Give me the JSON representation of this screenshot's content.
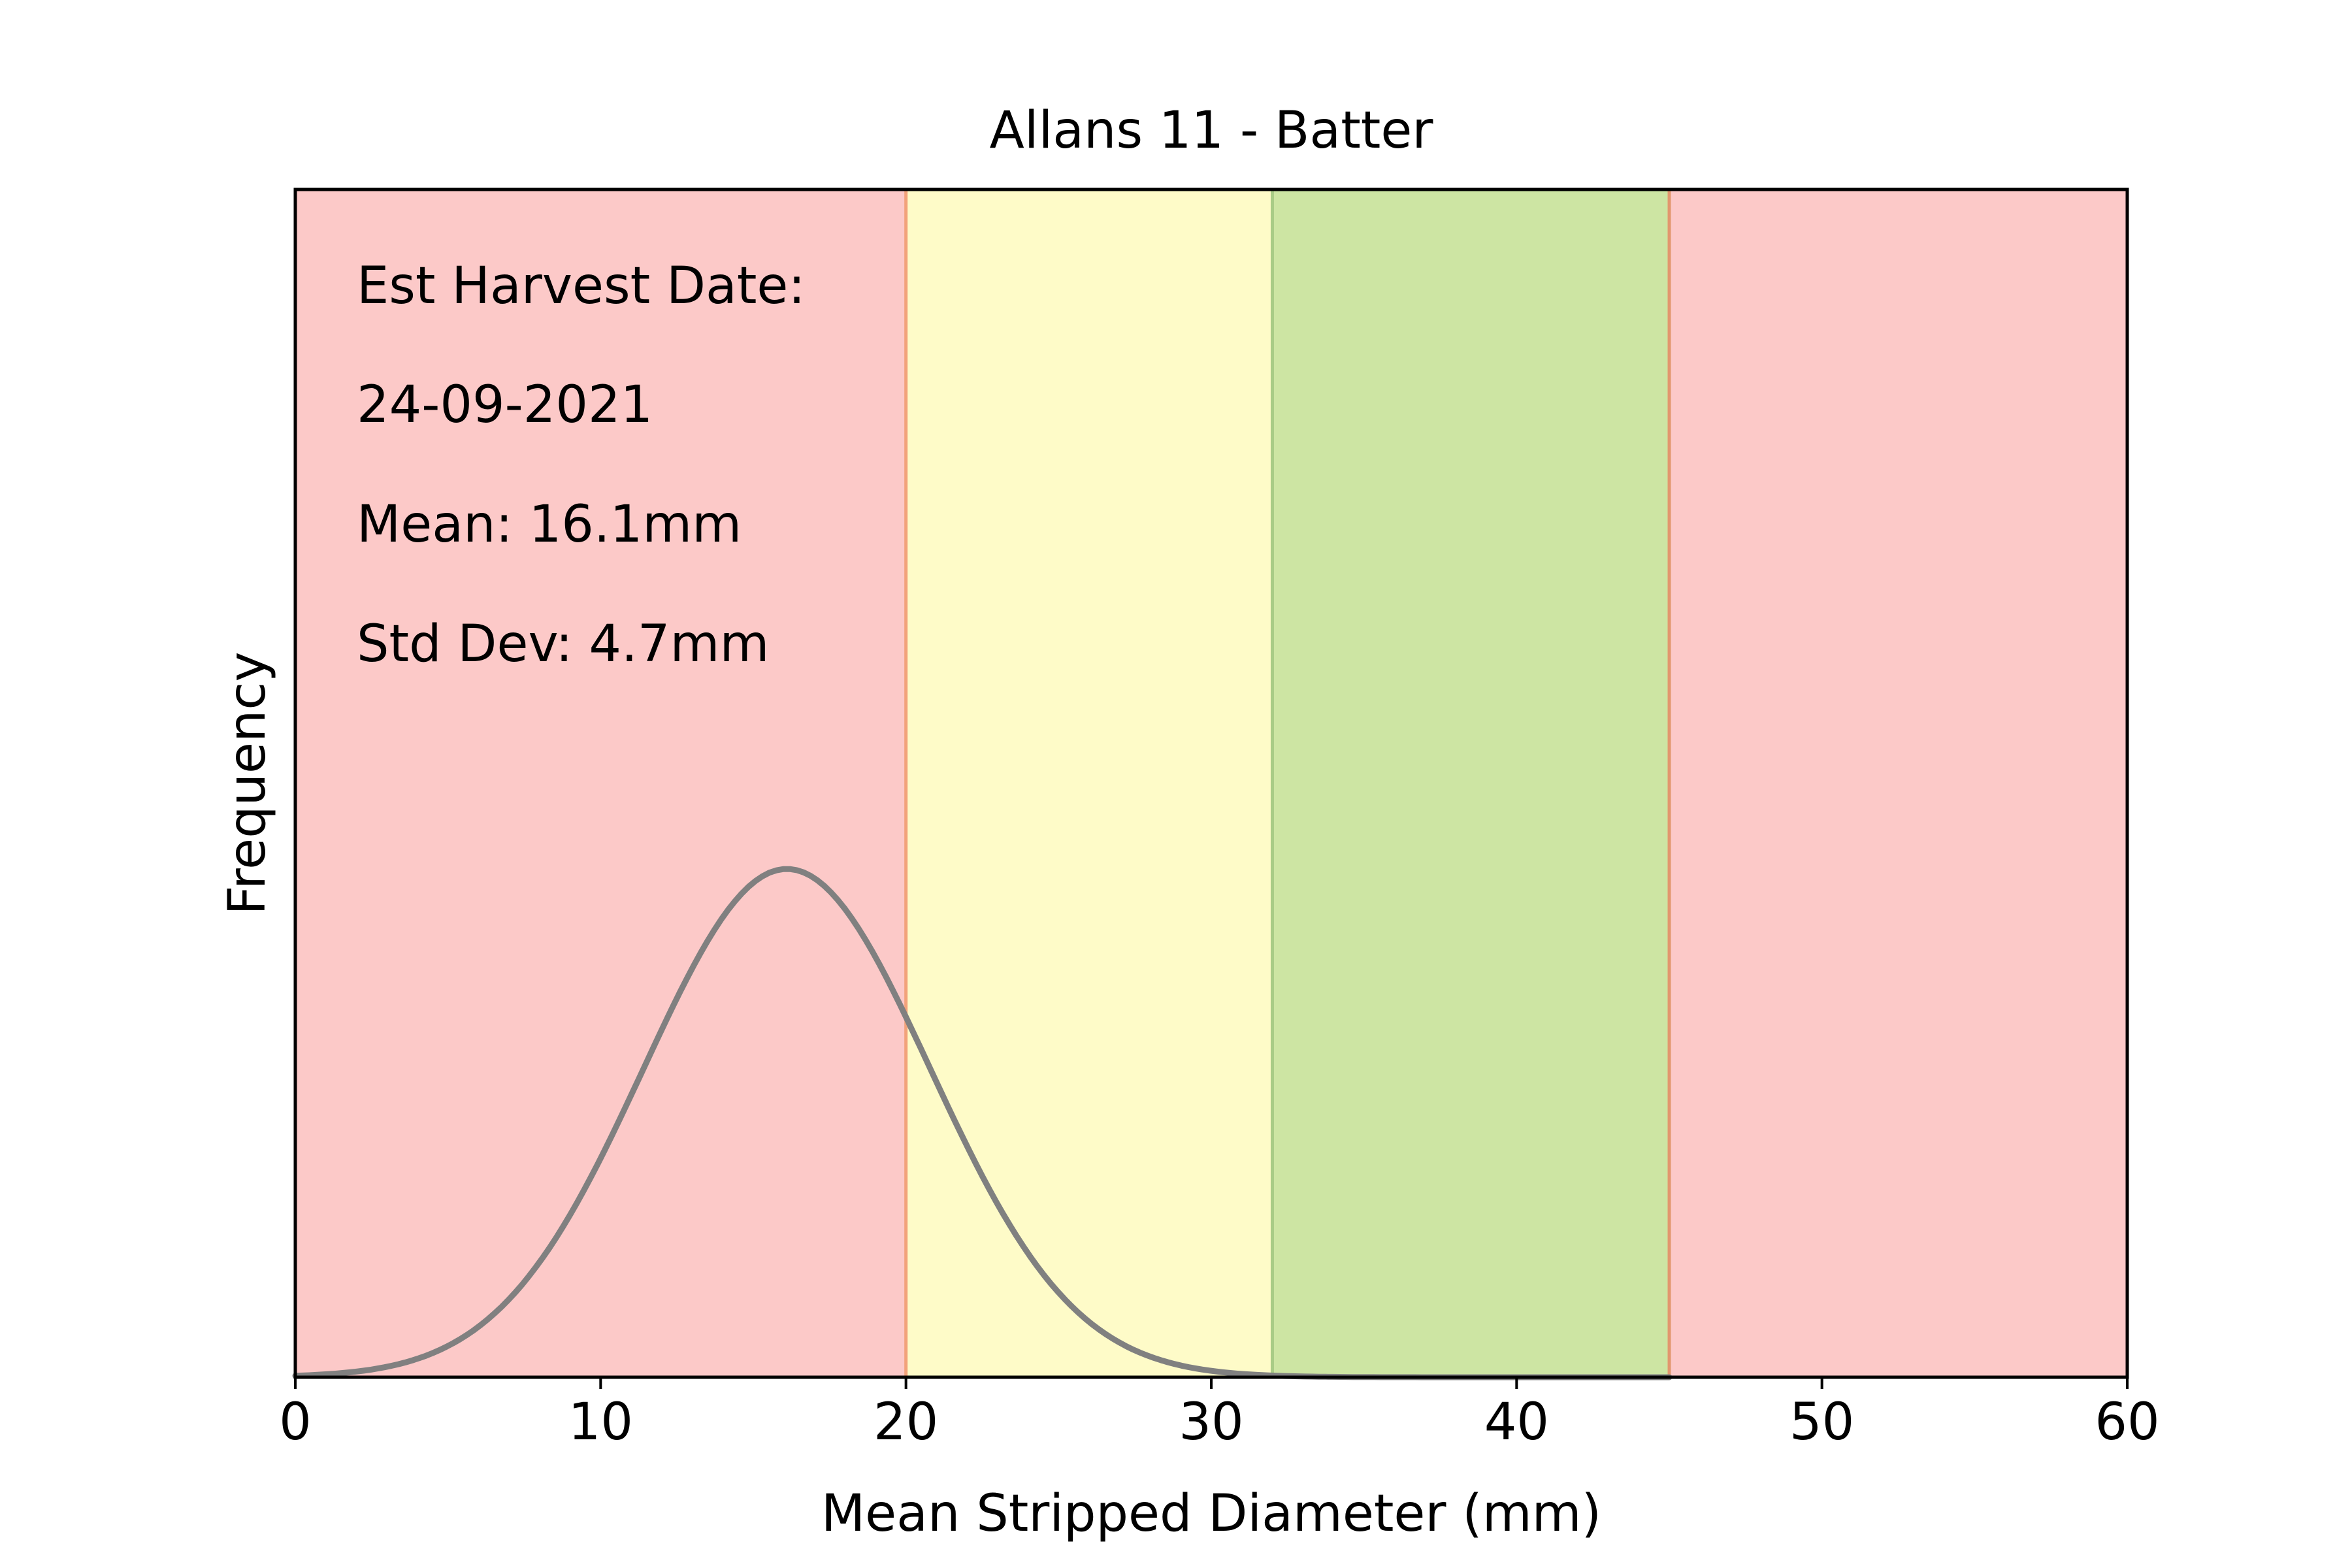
{
  "chart_data": {
    "type": "line",
    "title": "Allans 11 - Batter",
    "xlabel": "Mean Stripped Diameter (mm)",
    "ylabel": "Frequency",
    "xlim": [
      0,
      60
    ],
    "x_ticks": [
      0,
      10,
      20,
      30,
      40,
      50,
      60
    ],
    "y_ticks_shown": false,
    "grid": false,
    "annotations": [
      "Est Harvest Date:",
      "24-09-2021",
      "Mean: 16.1mm",
      "Std Dev: 4.7mm"
    ],
    "bands": [
      {
        "from": 0,
        "to": 20,
        "color": "#fcc9c8"
      },
      {
        "from": 20,
        "to": 32,
        "color": "#fefbc8"
      },
      {
        "from": 32,
        "to": 45,
        "color": "#cde5a3"
      },
      {
        "from": 45,
        "to": 60,
        "color": "#fcc9c8"
      }
    ],
    "band_edge_colors": [
      "#f2a27a",
      "#a9cc86",
      "#e2976e"
    ],
    "series": [
      {
        "distribution": "normal",
        "mean": 16.1,
        "std_dev": 4.7,
        "x_range": [
          0,
          45
        ],
        "color": "#808080"
      }
    ]
  }
}
